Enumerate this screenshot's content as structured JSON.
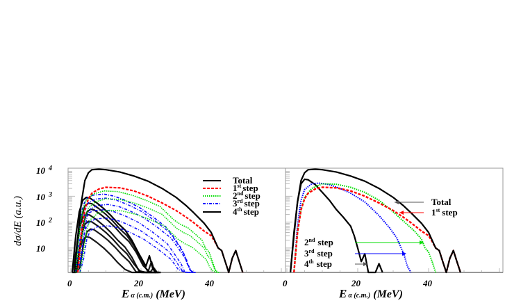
{
  "chart_data": [
    {
      "type": "line",
      "panel": "left",
      "title": "",
      "xlabel": "E_α (c.m.) (MeV)",
      "xlabel_main": "E",
      "xlabel_sub": "α (c.m.)",
      "xlabel_unit": "(MeV)",
      "ylabel": "dσ/dE (a.u.)",
      "yscale": "log",
      "xlim": [
        0,
        60
      ],
      "ylim": [
        1,
        12000
      ],
      "x_ticks": [
        "0",
        "20",
        "40"
      ],
      "y_ticks": [
        "10",
        "10 2",
        "10 3",
        "10 4"
      ],
      "y_tick_labels": [
        {
          "base": "10",
          "exp": ""
        },
        {
          "base": "10",
          "exp": "2"
        },
        {
          "base": "10",
          "exp": "3"
        },
        {
          "base": "10",
          "exp": "4"
        }
      ],
      "legend_position": "upper right",
      "legend": [
        {
          "label": "Total",
          "base": "",
          "sup": "",
          "word": "Total",
          "color": "#000000",
          "style": "solid"
        },
        {
          "label": "1st step",
          "base": "1",
          "sup": "st",
          "word": "step",
          "color": "#ff0000",
          "style": "dashed"
        },
        {
          "label": "2nd step",
          "base": "2",
          "sup": "nd",
          "word": "step",
          "color": "#00dd00",
          "style": "dotted"
        },
        {
          "label": "3rd step",
          "base": "3",
          "sup": "rd",
          "word": "step",
          "color": "#0000ff",
          "style": "dash-dot"
        },
        {
          "label": "4th step",
          "base": "4",
          "sup": "th",
          "word": "step",
          "color": "#000000",
          "style": "solid"
        }
      ],
      "series": [
        {
          "name": "Total",
          "color": "#000000",
          "style": "solid",
          "width": 2.2,
          "x": [
            1,
            2,
            3,
            4,
            5,
            6,
            8,
            10,
            14,
            18,
            22,
            26,
            30,
            33,
            35,
            38,
            40,
            41,
            42,
            43,
            44,
            45,
            46,
            47,
            48,
            49
          ],
          "y": [
            1,
            30,
            600,
            4000,
            8000,
            10500,
            11000,
            10500,
            8500,
            6000,
            3800,
            2000,
            900,
            420,
            230,
            90,
            40,
            20,
            10,
            8,
            3,
            1,
            4,
            8,
            3,
            1
          ]
        },
        {
          "name": "1st step",
          "color": "#ff0000",
          "style": "dashed",
          "width": 2.2,
          "x": [
            2,
            3,
            4,
            5,
            6,
            8,
            10,
            14,
            18,
            22,
            26,
            30,
            33,
            35,
            38,
            40,
            41,
            42,
            43,
            44,
            45,
            46,
            47,
            48,
            49
          ],
          "y": [
            1,
            40,
            300,
            800,
            1300,
            1900,
            2200,
            2100,
            1600,
            1000,
            550,
            280,
            150,
            95,
            45,
            30,
            18,
            10,
            8,
            3,
            1,
            4,
            8,
            3,
            1
          ]
        },
        {
          "name": "2nd step",
          "color": "#00dd00",
          "style": "dotted",
          "width": 1.6,
          "x": [
            2,
            3,
            4,
            5,
            7,
            10,
            14,
            18,
            22,
            26,
            28,
            30,
            32,
            34,
            36,
            38,
            39,
            40,
            41,
            42
          ],
          "y": [
            1,
            40,
            300,
            700,
            1200,
            1600,
            1500,
            1100,
            700,
            400,
            220,
            120,
            80,
            60,
            35,
            20,
            10,
            7,
            3,
            1
          ]
        },
        {
          "name": "3rd step",
          "color": "#0000ff",
          "style": "dash-dot",
          "width": 1.6,
          "x": [
            2,
            3,
            4,
            5,
            7,
            10,
            13,
            16,
            20,
            24,
            28,
            30,
            32,
            33,
            34,
            35
          ],
          "y": [
            1,
            60,
            400,
            800,
            1100,
            1200,
            1000,
            700,
            380,
            160,
            60,
            25,
            10,
            5,
            2,
            1
          ]
        },
        {
          "name": "4th step",
          "color": "#000000",
          "style": "solid",
          "width": 2.2,
          "x": [
            1,
            2,
            3,
            4,
            5,
            6,
            8,
            10,
            12,
            14,
            16,
            18,
            20,
            22,
            23,
            24,
            25
          ],
          "y": [
            1,
            30,
            250,
            700,
            900,
            850,
            550,
            330,
            180,
            90,
            50,
            20,
            6,
            2,
            5,
            1.5,
            1
          ]
        }
      ],
      "note": "Left panel overlays many realizations (bundles) of each step curve"
    },
    {
      "type": "line",
      "panel": "right",
      "title": "",
      "xlabel": "E_α (c.m.) (MeV)",
      "xlabel_main": "E",
      "xlabel_sub": "α (c.m.)",
      "xlabel_unit": "(MeV)",
      "ylabel": "",
      "yscale": "log",
      "xlim": [
        0,
        60
      ],
      "ylim": [
        1,
        12000
      ],
      "x_ticks": [
        "0",
        "20",
        "40"
      ],
      "annotations": [
        {
          "text": "Total",
          "base": "",
          "sup": "",
          "word": "Total",
          "arrow_color": "#555555",
          "points_to_x": 29
        },
        {
          "text": "1st step",
          "base": "1",
          "sup": "st",
          "word": "step",
          "arrow_color": "#ff0000",
          "points_to_x": 31
        },
        {
          "text": "2nd step",
          "base": "2",
          "sup": "nd",
          "word": "step",
          "arrow_color": "#00dd00",
          "points_to_x": 38
        },
        {
          "text": "3rd step",
          "base": "3",
          "sup": "rd",
          "word": "step",
          "arrow_color": "#0000ff",
          "points_to_x": 33
        },
        {
          "text": "4th step",
          "base": "4",
          "sup": "th",
          "word": "step",
          "arrow_color": "#555555",
          "points_to_x": 21
        }
      ],
      "series": [
        {
          "name": "Total",
          "color": "#000000",
          "style": "solid",
          "width": 2.2,
          "x": [
            1,
            2,
            3,
            4,
            5,
            6,
            8,
            10,
            14,
            18,
            22,
            26,
            30,
            33,
            35,
            38,
            40,
            41,
            42,
            43,
            44,
            45,
            46,
            47,
            48,
            49
          ],
          "y": [
            1,
            30,
            600,
            4000,
            8000,
            10500,
            11000,
            10500,
            8500,
            6000,
            3800,
            2000,
            900,
            420,
            230,
            90,
            40,
            20,
            10,
            8,
            3,
            1,
            4,
            8,
            3,
            1
          ]
        },
        {
          "name": "1st step",
          "color": "#ff0000",
          "style": "dashed",
          "width": 2.4,
          "x": [
            2,
            3,
            4,
            5,
            6,
            8,
            10,
            14,
            18,
            22,
            26,
            30,
            33,
            35,
            38,
            40,
            41,
            42,
            43,
            44,
            45,
            46,
            47,
            48,
            49
          ],
          "y": [
            1,
            40,
            300,
            800,
            1300,
            1900,
            2200,
            2100,
            1600,
            1000,
            550,
            280,
            150,
            95,
            45,
            30,
            18,
            10,
            8,
            3,
            1,
            4,
            8,
            3,
            1
          ]
        },
        {
          "name": "2nd step",
          "color": "#00dd00",
          "style": "dotted",
          "width": 2.0,
          "x": [
            2,
            3,
            4,
            5,
            7,
            10,
            14,
            18,
            22,
            26,
            28,
            30,
            32,
            34,
            36,
            38,
            39,
            40,
            41,
            42
          ],
          "y": [
            1,
            40,
            300,
            900,
            2000,
            3000,
            2900,
            2200,
            1400,
            700,
            420,
            250,
            140,
            80,
            45,
            22,
            10,
            7,
            3,
            1
          ]
        },
        {
          "name": "3rd step",
          "color": "#0000ff",
          "style": "dotted",
          "width": 2.0,
          "x": [
            2,
            3,
            4,
            5,
            7,
            9,
            12,
            15,
            18,
            22,
            26,
            29,
            31,
            32,
            33,
            34,
            35
          ],
          "y": [
            1,
            80,
            700,
            1800,
            3000,
            3200,
            2800,
            2000,
            1300,
            600,
            180,
            60,
            25,
            12,
            6,
            2,
            1
          ]
        },
        {
          "name": "4th step",
          "color": "#000000",
          "style": "solid",
          "width": 2.2,
          "x": [
            1,
            2,
            3,
            4,
            5,
            6,
            8,
            10,
            12,
            14,
            16,
            18,
            19,
            20,
            21,
            22,
            23,
            24,
            25,
            26,
            27
          ],
          "y": [
            1,
            40,
            600,
            3000,
            4500,
            4300,
            2800,
            1400,
            700,
            300,
            150,
            70,
            30,
            10,
            3,
            6,
            1,
            1,
            1,
            2.5,
            1
          ]
        }
      ]
    }
  ]
}
